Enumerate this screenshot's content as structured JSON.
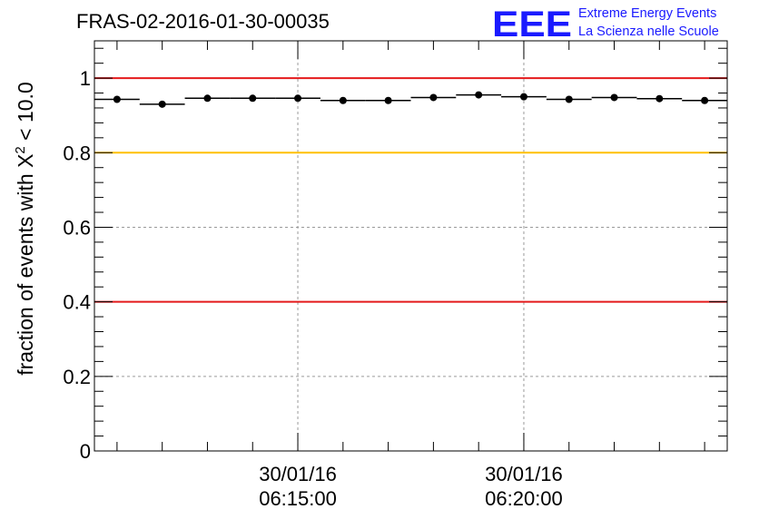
{
  "chart_data": {
    "type": "scatter",
    "title": "FRAS-02-2016-01-30-00035",
    "ylabel_prefix": "fraction of events with ",
    "ylabel_symbol": "X",
    "ylabel_superscript": "2",
    "ylabel_suffix": " < 10.0",
    "xlabel": "",
    "ylim": [
      0,
      1.1
    ],
    "yticks": [
      0,
      0.2,
      0.4,
      0.6,
      0.8,
      1
    ],
    "ytick_labels": [
      "0",
      "0.2",
      "0.4",
      "0.6",
      "0.8",
      "1"
    ],
    "xlim": [
      0,
      14
    ],
    "xticks": [
      {
        "x": 4.5,
        "date": "30/01/16",
        "time": "06:15:00"
      },
      {
        "x": 9.5,
        "date": "30/01/16",
        "time": "06:20:00"
      }
    ],
    "series": [
      {
        "name": "fraction",
        "points": [
          {
            "x": 0.5,
            "y": 0.943
          },
          {
            "x": 1.5,
            "y": 0.93
          },
          {
            "x": 2.5,
            "y": 0.946
          },
          {
            "x": 3.5,
            "y": 0.946
          },
          {
            "x": 4.5,
            "y": 0.946
          },
          {
            "x": 5.5,
            "y": 0.94
          },
          {
            "x": 6.5,
            "y": 0.94
          },
          {
            "x": 7.5,
            "y": 0.948
          },
          {
            "x": 8.5,
            "y": 0.955
          },
          {
            "x": 9.5,
            "y": 0.95
          },
          {
            "x": 10.5,
            "y": 0.943
          },
          {
            "x": 11.5,
            "y": 0.948
          },
          {
            "x": 12.5,
            "y": 0.945
          },
          {
            "x": 13.5,
            "y": 0.94
          }
        ]
      }
    ],
    "reference_lines": [
      {
        "y": 1.0,
        "color": "#e41a1c"
      },
      {
        "y": 0.8,
        "color": "#ffc000"
      },
      {
        "y": 0.4,
        "color": "#e41a1c"
      }
    ],
    "grid": true
  },
  "logo": {
    "mark": "EEE",
    "line1": "Extreme Energy Events",
    "line2": "La Scienza nelle Scuole",
    "color": "#1a1aff"
  }
}
